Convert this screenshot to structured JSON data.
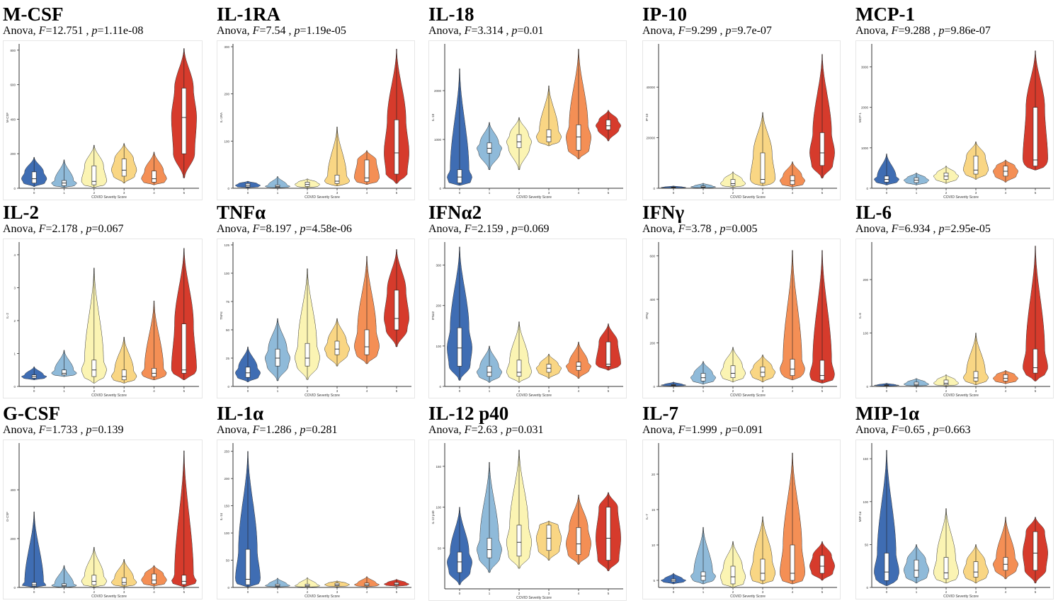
{
  "figure": {
    "x_label": "COVID Severity Score",
    "severity_levels": [
      "0",
      "1",
      "2",
      "3",
      "4",
      "5"
    ],
    "colors": [
      "#3f6db3",
      "#8fbad9",
      "#fbf4b3",
      "#f9d684",
      "#f48f55",
      "#d63b2c"
    ]
  },
  "chart_data": [
    {
      "type": "violin",
      "title": "M-CSF",
      "ylabel": "M-CSF",
      "test": "Anova",
      "F": "12.751",
      "p": "1.11e-08",
      "yticks": [
        "0",
        "200",
        "400",
        "600",
        "800"
      ],
      "ylim": [
        0,
        820
      ],
      "groups": [
        {
          "min": 10,
          "q1": 30,
          "median": 55,
          "q3": 95,
          "max": 180
        },
        {
          "min": 5,
          "q1": 15,
          "median": 30,
          "q3": 45,
          "max": 165
        },
        {
          "min": 5,
          "q1": 20,
          "median": 40,
          "q3": 130,
          "max": 250
        },
        {
          "min": 30,
          "q1": 70,
          "median": 105,
          "q3": 170,
          "max": 260
        },
        {
          "min": 20,
          "q1": 35,
          "median": 55,
          "q3": 100,
          "max": 210
        },
        {
          "min": 60,
          "q1": 200,
          "median": 410,
          "q3": 580,
          "max": 810
        }
      ]
    },
    {
      "type": "violin",
      "title": "IL-1RA",
      "ylabel": "IL-1RA",
      "test": "Anova",
      "F": "7.54",
      "p": "1.19e-05",
      "yticks": [
        "0",
        "100",
        "200",
        "300"
      ],
      "ylim": [
        0,
        300
      ],
      "groups": [
        {
          "min": 1,
          "q1": 3,
          "median": 6,
          "q3": 10,
          "max": 15
        },
        {
          "min": 1,
          "q1": 2,
          "median": 4,
          "q3": 7,
          "max": 25
        },
        {
          "min": 1,
          "q1": 4,
          "median": 8,
          "q3": 13,
          "max": 20
        },
        {
          "min": 5,
          "q1": 10,
          "median": 15,
          "q3": 28,
          "max": 130
        },
        {
          "min": 8,
          "q1": 14,
          "median": 22,
          "q3": 60,
          "max": 80
        },
        {
          "min": 10,
          "q1": 30,
          "median": 75,
          "q3": 145,
          "max": 295
        }
      ]
    },
    {
      "type": "violin",
      "title": "IL-18",
      "ylabel": "IL-18",
      "test": "Anova",
      "F": "3.314",
      "p": "0.01",
      "yticks": [
        "0",
        "1000",
        "2000"
      ],
      "ylim": [
        0,
        2900
      ],
      "groups": [
        {
          "min": 60,
          "q1": 110,
          "median": 230,
          "q3": 380,
          "max": 2450
        },
        {
          "min": 380,
          "q1": 720,
          "median": 820,
          "q3": 930,
          "max": 1350
        },
        {
          "min": 380,
          "q1": 830,
          "median": 950,
          "q3": 1100,
          "max": 1450
        },
        {
          "min": 870,
          "q1": 950,
          "median": 1050,
          "q3": 1200,
          "max": 2100
        },
        {
          "min": 600,
          "q1": 780,
          "median": 1050,
          "q3": 1300,
          "max": 2850
        },
        {
          "min": 970,
          "q1": 1200,
          "median": 1280,
          "q3": 1400,
          "max": 1600
        }
      ]
    },
    {
      "type": "violin",
      "title": "IP-10",
      "ylabel": "IP-10",
      "test": "Anova",
      "F": "9.299",
      "p": "9.7e-07",
      "yticks": [
        "0",
        "20000",
        "40000"
      ],
      "ylim": [
        0,
        56000
      ],
      "groups": [
        {
          "min": 100,
          "q1": 200,
          "median": 300,
          "q3": 500,
          "max": 900
        },
        {
          "min": 100,
          "q1": 300,
          "median": 500,
          "q3": 900,
          "max": 2000
        },
        {
          "min": 400,
          "q1": 1000,
          "median": 1800,
          "q3": 3500,
          "max": 6500
        },
        {
          "min": 1000,
          "q1": 2000,
          "median": 3500,
          "q3": 14000,
          "max": 30000
        },
        {
          "min": 500,
          "q1": 1500,
          "median": 3000,
          "q3": 5000,
          "max": 10500
        },
        {
          "min": 4000,
          "q1": 9000,
          "median": 14000,
          "q3": 22000,
          "max": 53000
        }
      ]
    },
    {
      "type": "violin",
      "title": "MCP-1",
      "ylabel": "MCP-1",
      "test": "Anova",
      "F": "9.288",
      "p": "9.86e-07",
      "yticks": [
        "0",
        "1000",
        "2000",
        "3000"
      ],
      "ylim": [
        0,
        3500
      ],
      "groups": [
        {
          "min": 80,
          "q1": 150,
          "median": 220,
          "q3": 300,
          "max": 850
        },
        {
          "min": 80,
          "q1": 140,
          "median": 200,
          "q3": 260,
          "max": 380
        },
        {
          "min": 120,
          "q1": 220,
          "median": 300,
          "q3": 380,
          "max": 550
        },
        {
          "min": 220,
          "q1": 350,
          "median": 450,
          "q3": 800,
          "max": 1150
        },
        {
          "min": 150,
          "q1": 300,
          "median": 420,
          "q3": 550,
          "max": 700
        },
        {
          "min": 450,
          "q1": 550,
          "median": 700,
          "q3": 2000,
          "max": 3400
        }
      ]
    },
    {
      "type": "violin",
      "title": "IL-2",
      "ylabel": "IL-2",
      "test": "Anova",
      "F": "2.178",
      "p": "0.067",
      "yticks": [
        "0",
        "1",
        "2",
        "3",
        "4"
      ],
      "ylim": [
        0,
        4.3
      ],
      "groups": [
        {
          "min": 0.2,
          "q1": 0.25,
          "median": 0.3,
          "q3": 0.35,
          "max": 0.6
        },
        {
          "min": 0.3,
          "q1": 0.35,
          "median": 0.4,
          "q3": 0.5,
          "max": 1.1
        },
        {
          "min": 0.1,
          "q1": 0.3,
          "median": 0.5,
          "q3": 0.8,
          "max": 3.6
        },
        {
          "min": 0.1,
          "q1": 0.2,
          "median": 0.3,
          "q3": 0.5,
          "max": 1.5
        },
        {
          "min": 0.2,
          "q1": 0.3,
          "median": 0.4,
          "q3": 0.55,
          "max": 2.6
        },
        {
          "min": 0.2,
          "q1": 0.4,
          "median": 0.5,
          "q3": 1.9,
          "max": 4.2
        }
      ]
    },
    {
      "type": "violin",
      "title": "TNFα",
      "ylabel": "TNFα",
      "test": "Anova",
      "F": "8.197",
      "p": "4.58e-06",
      "yticks": [
        "0",
        "25",
        "50",
        "75",
        "100",
        "125"
      ],
      "ylim": [
        0,
        125
      ],
      "groups": [
        {
          "min": 4,
          "q1": 8,
          "median": 12,
          "q3": 17,
          "max": 35
        },
        {
          "min": 5,
          "q1": 18,
          "median": 25,
          "q3": 33,
          "max": 60
        },
        {
          "min": 6,
          "q1": 18,
          "median": 25,
          "q3": 38,
          "max": 104
        },
        {
          "min": 18,
          "q1": 28,
          "median": 33,
          "q3": 40,
          "max": 60
        },
        {
          "min": 20,
          "q1": 28,
          "median": 35,
          "q3": 50,
          "max": 115
        },
        {
          "min": 35,
          "q1": 50,
          "median": 60,
          "q3": 85,
          "max": 121
        }
      ]
    },
    {
      "type": "violin",
      "title": "IFNα2",
      "ylabel": "IFNα2",
      "test": "Anova",
      "F": "2.159",
      "p": "0.069",
      "yticks": [
        "0",
        "100",
        "200",
        "300"
      ],
      "ylim": [
        0,
        350
      ],
      "groups": [
        {
          "min": 15,
          "q1": 50,
          "median": 95,
          "q3": 145,
          "max": 345
        },
        {
          "min": 10,
          "q1": 25,
          "median": 35,
          "q3": 50,
          "max": 100
        },
        {
          "min": 10,
          "q1": 25,
          "median": 35,
          "q3": 65,
          "max": 160
        },
        {
          "min": 20,
          "q1": 35,
          "median": 45,
          "q3": 55,
          "max": 80
        },
        {
          "min": 20,
          "q1": 40,
          "median": 50,
          "q3": 60,
          "max": 110
        },
        {
          "min": 40,
          "q1": 50,
          "median": 55,
          "q3": 110,
          "max": 155
        }
      ]
    },
    {
      "type": "violin",
      "title": "IFNγ",
      "ylabel": "IFNγ",
      "test": "Anova",
      "F": "3.78",
      "p": "0.005",
      "yticks": [
        "0",
        "200",
        "400",
        "600"
      ],
      "ylim": [
        0,
        650
      ],
      "groups": [
        {
          "min": 2,
          "q1": 4,
          "median": 6,
          "q3": 9,
          "max": 20
        },
        {
          "min": 10,
          "q1": 25,
          "median": 40,
          "q3": 60,
          "max": 115
        },
        {
          "min": 20,
          "q1": 40,
          "median": 60,
          "q3": 95,
          "max": 180
        },
        {
          "min": 20,
          "q1": 45,
          "median": 65,
          "q3": 90,
          "max": 145
        },
        {
          "min": 30,
          "q1": 50,
          "median": 80,
          "q3": 125,
          "max": 625
        },
        {
          "min": 15,
          "q1": 30,
          "median": 50,
          "q3": 120,
          "max": 625
        }
      ]
    },
    {
      "type": "violin",
      "title": "IL-6",
      "ylabel": "IL-6",
      "test": "Anova",
      "F": "6.934",
      "p": "2.95e-05",
      "yticks": [
        "0",
        "100",
        "200"
      ],
      "ylim": [
        0,
        265
      ],
      "groups": [
        {
          "min": 1,
          "q1": 1.5,
          "median": 2,
          "q3": 3,
          "max": 6
        },
        {
          "min": 1,
          "q1": 2,
          "median": 4,
          "q3": 8,
          "max": 15
        },
        {
          "min": 1,
          "q1": 3,
          "median": 6,
          "q3": 12,
          "max": 22
        },
        {
          "min": 3,
          "q1": 10,
          "median": 16,
          "q3": 28,
          "max": 100
        },
        {
          "min": 5,
          "q1": 10,
          "median": 15,
          "q3": 22,
          "max": 30
        },
        {
          "min": 10,
          "q1": 25,
          "median": 35,
          "q3": 70,
          "max": 263
        }
      ]
    },
    {
      "type": "violin",
      "title": "G-CSF",
      "ylabel": "G-CSF",
      "test": "Anova",
      "F": "1.733",
      "p": "0.139",
      "yticks": [
        "0",
        "200",
        "400"
      ],
      "ylim": [
        0,
        580
      ],
      "groups": [
        {
          "min": 1,
          "q1": 5,
          "median": 10,
          "q3": 20,
          "max": 310
        },
        {
          "min": 1,
          "q1": 4,
          "median": 8,
          "q3": 15,
          "max": 90
        },
        {
          "min": 2,
          "q1": 10,
          "median": 25,
          "q3": 50,
          "max": 165
        },
        {
          "min": 3,
          "q1": 10,
          "median": 20,
          "q3": 40,
          "max": 115
        },
        {
          "min": 5,
          "q1": 15,
          "median": 30,
          "q3": 55,
          "max": 90
        },
        {
          "min": 3,
          "q1": 12,
          "median": 25,
          "q3": 50,
          "max": 560
        }
      ]
    },
    {
      "type": "violin",
      "title": "IL-1α",
      "ylabel": "IL-1α",
      "test": "Anova",
      "F": "1.286",
      "p": "0.281",
      "yticks": [
        "0",
        "50",
        "100",
        "150",
        "200",
        "250"
      ],
      "ylim": [
        0,
        260
      ],
      "groups": [
        {
          "min": 1,
          "q1": 5,
          "median": 15,
          "q3": 70,
          "max": 250
        },
        {
          "min": 1,
          "q1": 2,
          "median": 3,
          "q3": 6,
          "max": 17
        },
        {
          "min": 0.5,
          "q1": 1.5,
          "median": 3,
          "q3": 6,
          "max": 18
        },
        {
          "min": 1,
          "q1": 3,
          "median": 5,
          "q3": 8,
          "max": 12
        },
        {
          "min": 1,
          "q1": 3,
          "median": 5,
          "q3": 8,
          "max": 20
        },
        {
          "min": 2,
          "q1": 4,
          "median": 6,
          "q3": 9,
          "max": 15
        }
      ]
    },
    {
      "type": "violin",
      "title": "IL-12 p40",
      "ylabel": "IL-12 p40",
      "test": "Anova",
      "F": "2.63",
      "p": "0.031",
      "yticks": [
        "50",
        "100",
        "150"
      ],
      "ylim": [
        0,
        175
      ],
      "groups": [
        {
          "min": 5,
          "q1": 20,
          "median": 33,
          "q3": 45,
          "max": 100
        },
        {
          "min": 20,
          "q1": 38,
          "median": 48,
          "q3": 62,
          "max": 155
        },
        {
          "min": 25,
          "q1": 40,
          "median": 57,
          "q3": 78,
          "max": 170
        },
        {
          "min": 35,
          "q1": 47,
          "median": 62,
          "q3": 78,
          "max": 83
        },
        {
          "min": 30,
          "q1": 42,
          "median": 55,
          "q3": 75,
          "max": 115
        },
        {
          "min": 22,
          "q1": 35,
          "median": 62,
          "q3": 100,
          "max": 118
        }
      ]
    },
    {
      "type": "violin",
      "title": "IL-7",
      "ylabel": "IL-7",
      "test": "Anova",
      "F": "1.999",
      "p": "0.091",
      "yticks": [
        "5",
        "10",
        "15",
        "20"
      ],
      "ylim": [
        4,
        24
      ],
      "groups": [
        {
          "min": 4.5,
          "q1": 4.8,
          "median": 5,
          "q3": 5.2,
          "max": 6
        },
        {
          "min": 4.5,
          "q1": 5,
          "median": 5.6,
          "q3": 6.2,
          "max": 12.5
        },
        {
          "min": 4,
          "q1": 4.5,
          "median": 5.5,
          "q3": 7,
          "max": 10.5
        },
        {
          "min": 4.5,
          "q1": 5,
          "median": 6,
          "q3": 8,
          "max": 14
        },
        {
          "min": 4.5,
          "q1": 5,
          "median": 6,
          "q3": 10,
          "max": 23
        },
        {
          "min": 5,
          "q1": 6,
          "median": 7,
          "q3": 8.5,
          "max": 10.5
        }
      ]
    },
    {
      "type": "violin",
      "title": "MIP-1α",
      "ylabel": "MIP-1α",
      "test": "Anova",
      "F": "0.65",
      "p": "0.663",
      "yticks": [
        "0",
        "50",
        "100",
        "150"
      ],
      "ylim": [
        0,
        165
      ],
      "groups": [
        {
          "min": 2,
          "q1": 8,
          "median": 18,
          "q3": 40,
          "max": 160
        },
        {
          "min": 5,
          "q1": 12,
          "median": 20,
          "q3": 32,
          "max": 50
        },
        {
          "min": 5,
          "q1": 10,
          "median": 17,
          "q3": 35,
          "max": 92
        },
        {
          "min": 5,
          "q1": 12,
          "median": 18,
          "q3": 30,
          "max": 50
        },
        {
          "min": 10,
          "q1": 20,
          "median": 27,
          "q3": 35,
          "max": 82
        },
        {
          "min": 5,
          "q1": 20,
          "median": 40,
          "q3": 65,
          "max": 82
        }
      ]
    }
  ]
}
